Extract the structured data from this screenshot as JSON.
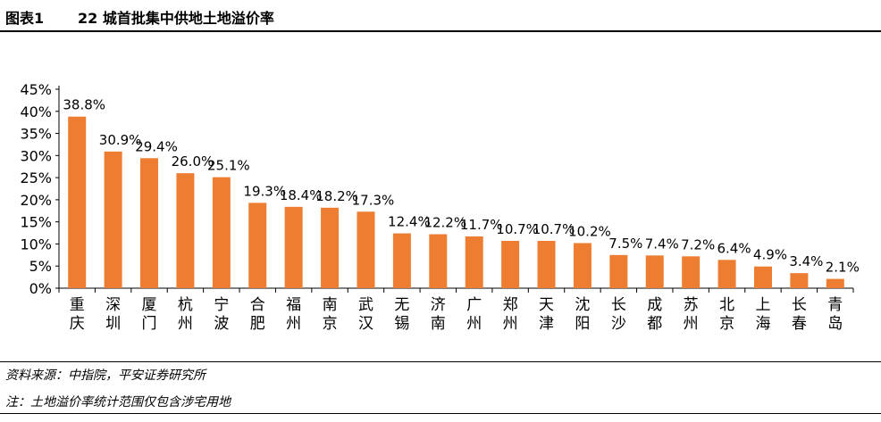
{
  "header": {
    "figure_number": "图表1",
    "title": "22 城首批集中供地土地溢价率"
  },
  "chart_data": {
    "type": "bar",
    "title": "22 城首批集中供地土地溢价率",
    "xlabel": "",
    "ylabel": "",
    "categories": [
      "重庆",
      "深圳",
      "厦门",
      "杭州",
      "宁波",
      "合肥",
      "福州",
      "南京",
      "武汉",
      "无锡",
      "济南",
      "广州",
      "郑州",
      "天津",
      "沈阳",
      "长沙",
      "成都",
      "苏州",
      "北京",
      "上海",
      "长春",
      "青岛"
    ],
    "values": [
      38.8,
      30.9,
      29.4,
      26.0,
      25.1,
      19.3,
      18.4,
      18.2,
      17.3,
      12.4,
      12.2,
      11.7,
      10.7,
      10.7,
      10.2,
      7.5,
      7.4,
      7.2,
      6.4,
      4.9,
      3.4,
      2.1
    ],
    "data_labels": [
      "38.8%",
      "30.9%",
      "29.4%",
      "26.0%",
      "25.1%",
      "19.3%",
      "18.4%",
      "18.2%",
      "17.3%",
      "12.4%",
      "12.2%",
      "11.7%",
      "10.7%",
      "10.7%",
      "10.2%",
      "7.5%",
      "7.4%",
      "7.2%",
      "6.4%",
      "4.9%",
      "3.4%",
      "2.1%"
    ],
    "yticks": [
      "0%",
      "5%",
      "10%",
      "15%",
      "20%",
      "25%",
      "30%",
      "35%",
      "40%",
      "45%"
    ],
    "ylim": [
      0,
      45
    ],
    "grid": false,
    "bar_color": "#ED7D31"
  },
  "footer": {
    "source": "资料来源：中指院，平安证券研究所",
    "note": "注：土地溢价率统计范围仅包含涉宅用地"
  }
}
